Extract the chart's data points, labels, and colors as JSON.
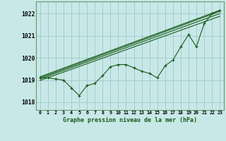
{
  "title": "Graphe pression niveau de la mer (hPa)",
  "bg_color": "#c8e8e8",
  "grid_color": "#a0c8c8",
  "line_color": "#1a5c1a",
  "spine_color": "#669966",
  "xlim": [
    -0.5,
    23.5
  ],
  "ylim": [
    1017.65,
    1022.55
  ],
  "yticks": [
    1018,
    1019,
    1020,
    1021,
    1022
  ],
  "hours": [
    0,
    1,
    2,
    3,
    4,
    5,
    6,
    7,
    8,
    9,
    10,
    11,
    12,
    13,
    14,
    15,
    16,
    17,
    18,
    19,
    20,
    21,
    22,
    23
  ],
  "pressure_main": [
    1019.1,
    1019.1,
    1019.05,
    1019.0,
    1018.65,
    1018.3,
    1018.75,
    1018.85,
    1019.2,
    1019.6,
    1019.7,
    1019.7,
    1019.55,
    1019.4,
    1019.3,
    1019.1,
    1019.65,
    1019.9,
    1020.5,
    1021.05,
    1020.5,
    1021.55,
    1022.0,
    1022.15
  ],
  "trend_lines": [
    [
      0,
      1019.15,
      23,
      1022.15
    ],
    [
      0,
      1019.1,
      23,
      1022.1
    ],
    [
      0,
      1019.05,
      23,
      1022.0
    ],
    [
      0,
      1018.98,
      23,
      1021.88
    ]
  ]
}
